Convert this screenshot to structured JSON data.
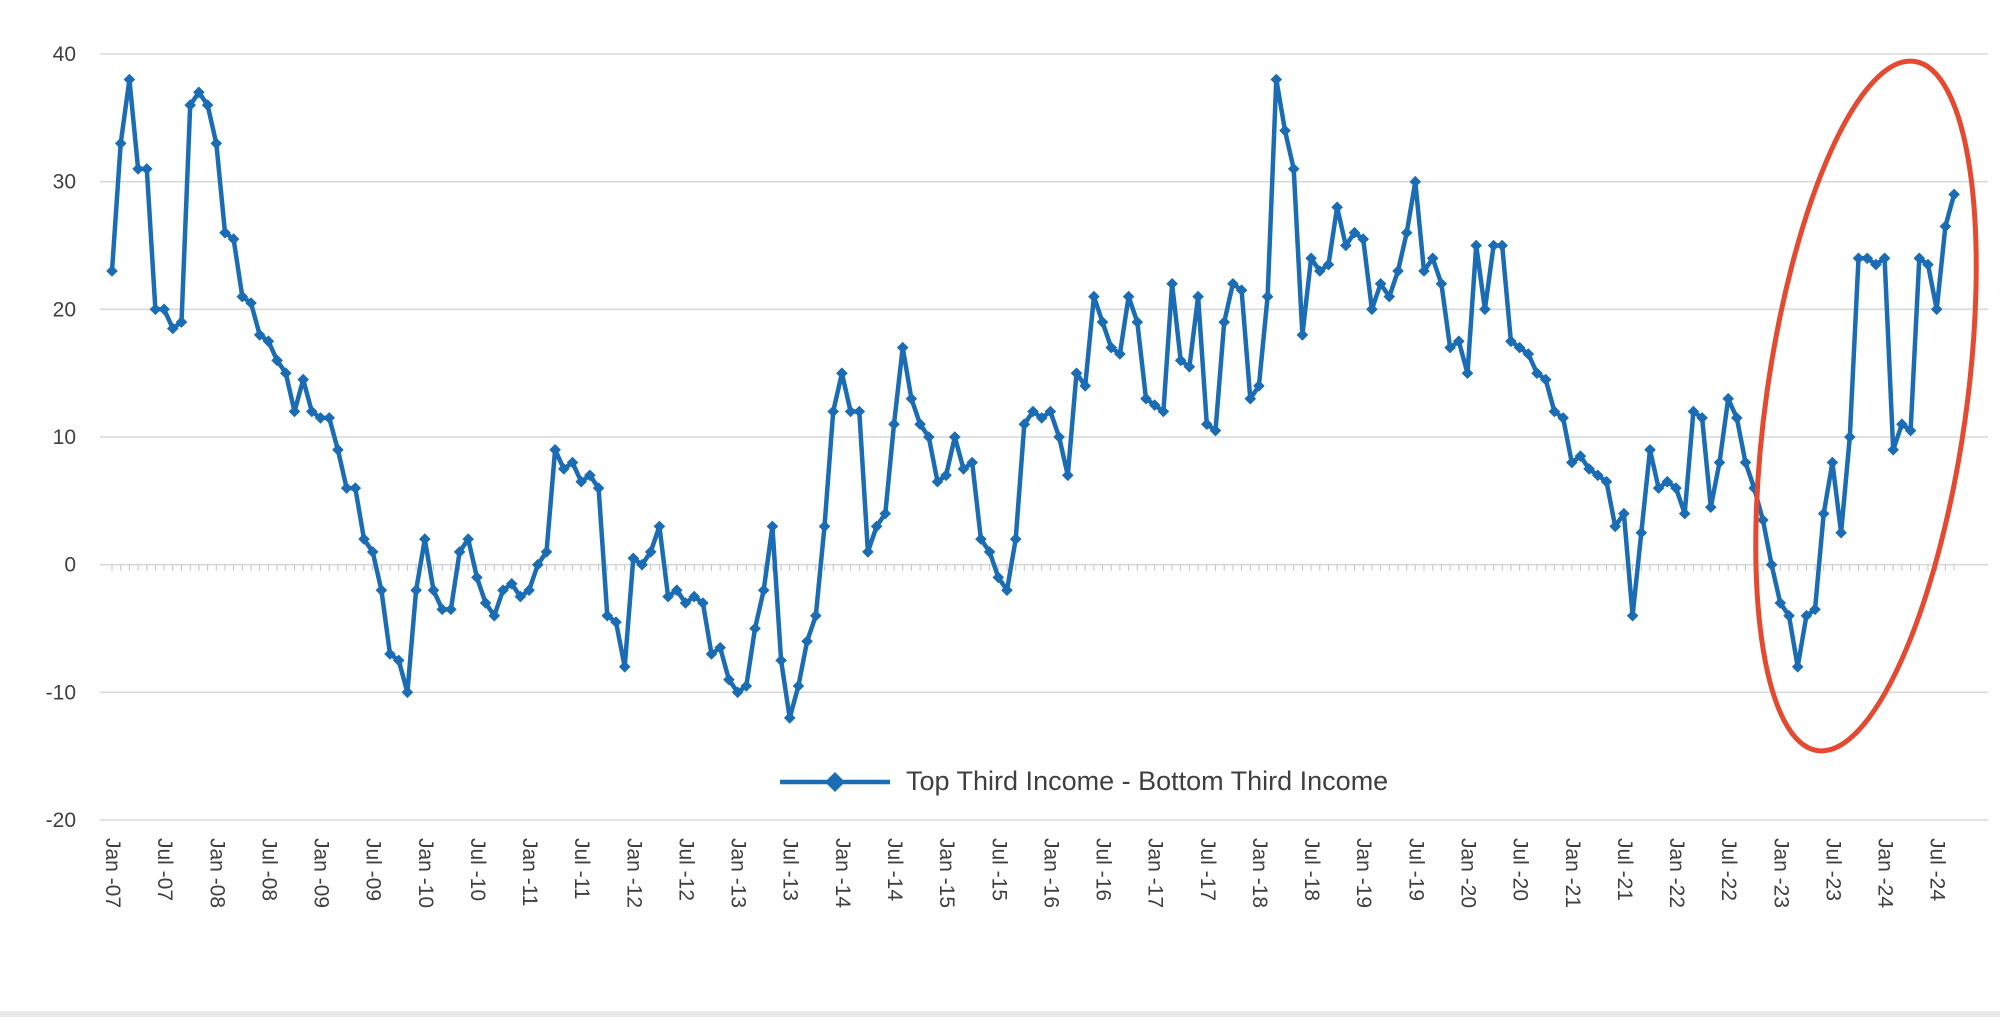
{
  "chart_data": {
    "type": "line",
    "title": "",
    "legend": {
      "position": "bottom-center",
      "label": "Top Third Income - Bottom Third Income"
    },
    "x_interval": "monthly",
    "x_start_label": "Jan -07",
    "x_end_label": "Sep -24",
    "x_tick_every": 6,
    "x_tick_labels": [
      "Jan -07",
      "Jul -07",
      "Jan -08",
      "Jul -08",
      "Jan -09",
      "Jul -09",
      "Jan -10",
      "Jul -10",
      "Jan -11",
      "Jul -11",
      "Jan -12",
      "Jul -12",
      "Jan -13",
      "Jul -13",
      "Jan -14",
      "Jul -14",
      "Jan -15",
      "Jul -15",
      "Jan -16",
      "Jul -16",
      "Jan -17",
      "Jul -17",
      "Jan -18",
      "Jul -18",
      "Jan -19",
      "Jul -19",
      "Jan -20",
      "Jul -20",
      "Jan -21",
      "Jul -21",
      "Jan -22",
      "Jul -22",
      "Jan -23",
      "Jul -23",
      "Jan -24",
      "Jul -24"
    ],
    "ylim": [
      -20,
      40
    ],
    "yticks": [
      40,
      30,
      20,
      10,
      0,
      -10,
      -20
    ],
    "grid": "horizontal",
    "series": [
      {
        "name": "Top Third Income - Bottom Third Income",
        "color": "#1a6cb5",
        "marker": "diamond",
        "values": [
          23,
          33,
          38,
          31,
          31,
          20,
          20,
          18.5,
          19,
          36,
          37,
          36,
          33,
          26,
          25.5,
          21,
          20.5,
          18,
          17.5,
          16,
          15,
          12,
          14.5,
          12,
          11.5,
          11.5,
          9,
          6,
          6,
          2,
          1,
          -2,
          -7,
          -7.5,
          -10,
          -2,
          2,
          -2,
          -3.5,
          -3.5,
          1,
          2,
          -1,
          -3,
          -4,
          -2,
          -1.5,
          -2.5,
          -2,
          0,
          1,
          9,
          7.5,
          8,
          6.5,
          7,
          6,
          -4,
          -4.5,
          -8,
          0.5,
          0,
          1,
          3,
          -2.5,
          -2,
          -3,
          -2.5,
          -3,
          -7,
          -6.5,
          -9,
          -10,
          -9.5,
          -5,
          -2,
          3,
          -7.5,
          -12,
          -9.5,
          -6,
          -4,
          3,
          12,
          15,
          12,
          12,
          1,
          3,
          4,
          11,
          17,
          13,
          11,
          10,
          6.5,
          7,
          10,
          7.5,
          8,
          2,
          1,
          -1,
          -2,
          2,
          11,
          12,
          11.5,
          12,
          10,
          7,
          15,
          14,
          21,
          19,
          17,
          16.5,
          21,
          19,
          13,
          12.5,
          12,
          22,
          16,
          15.5,
          21,
          11,
          10.5,
          19,
          22,
          21.5,
          13,
          14,
          21,
          38,
          34,
          31,
          18,
          24,
          23,
          23.5,
          28,
          25,
          26,
          25.5,
          20,
          22,
          21,
          23,
          26,
          30,
          23,
          24,
          22,
          17,
          17.5,
          15,
          25,
          20,
          25,
          25,
          17.5,
          17,
          16.5,
          15,
          14.5,
          12,
          11.5,
          8,
          8.5,
          7.5,
          7,
          6.5,
          3,
          4,
          -4,
          2.5,
          9,
          6,
          6.5,
          6,
          4,
          12,
          11.5,
          4.5,
          8,
          13,
          11.5,
          8,
          6,
          3.5,
          0,
          -3,
          -4,
          -8,
          -4,
          -3.5,
          4,
          8,
          2.5,
          10,
          24,
          24,
          23.5,
          24,
          9,
          11,
          10.5,
          24,
          23.5,
          20,
          26.5,
          29
        ]
      }
    ],
    "annotation": {
      "shape": "ellipse",
      "color": "#e5492f",
      "region": "Jan -23 to Sep -24",
      "purpose": "highlights recent sharp rise"
    },
    "colors": {
      "line": "#1a6cb5",
      "grid": "#d9d9d9",
      "axis_text": "#3f3f3f",
      "tick": "#c3c3c3",
      "annotation": "#e5492f",
      "background": "#ffffff"
    }
  }
}
